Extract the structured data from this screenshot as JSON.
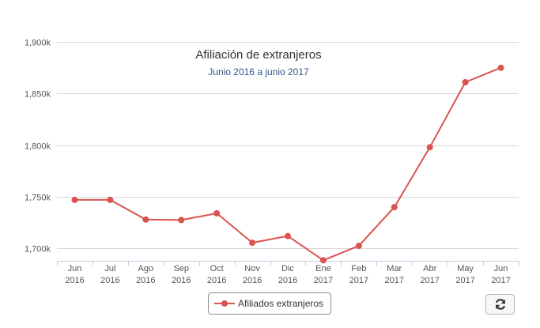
{
  "chart_data": {
    "type": "line",
    "title": "Afiliación de extranjeros",
    "subtitle": "Junio 2016 a junio 2017",
    "categories": [
      [
        "Jun",
        "2016"
      ],
      [
        "Jul",
        "2016"
      ],
      [
        "Ago",
        "2016"
      ],
      [
        "Sep",
        "2016"
      ],
      [
        "Oct",
        "2016"
      ],
      [
        "Nov",
        "2016"
      ],
      [
        "Dic",
        "2016"
      ],
      [
        "Ene",
        "2017"
      ],
      [
        "Feb",
        "2017"
      ],
      [
        "Mar",
        "2017"
      ],
      [
        "Abr",
        "2017"
      ],
      [
        "May",
        "2017"
      ],
      [
        "Jun",
        "2017"
      ]
    ],
    "series": [
      {
        "name": "Afiliados extranjeros",
        "color": "#d9534f",
        "values": [
          1747000,
          1747000,
          1728000,
          1727500,
          1734000,
          1705500,
          1712000,
          1688500,
          1702500,
          1740000,
          1798000,
          1861000,
          1875000
        ]
      }
    ],
    "ylim": [
      1688000,
      1910000
    ],
    "yticks": [
      1700000,
      1750000,
      1800000,
      1850000,
      1900000
    ],
    "ytick_labels": [
      "1,700k",
      "1,750k",
      "1,800k",
      "1,850k",
      "1,900k"
    ],
    "grid": true,
    "legend_position": "bottom-center"
  },
  "legend": {
    "label": "Afiliados extranjeros"
  },
  "controls": {
    "refresh_icon": "refresh-icon"
  }
}
